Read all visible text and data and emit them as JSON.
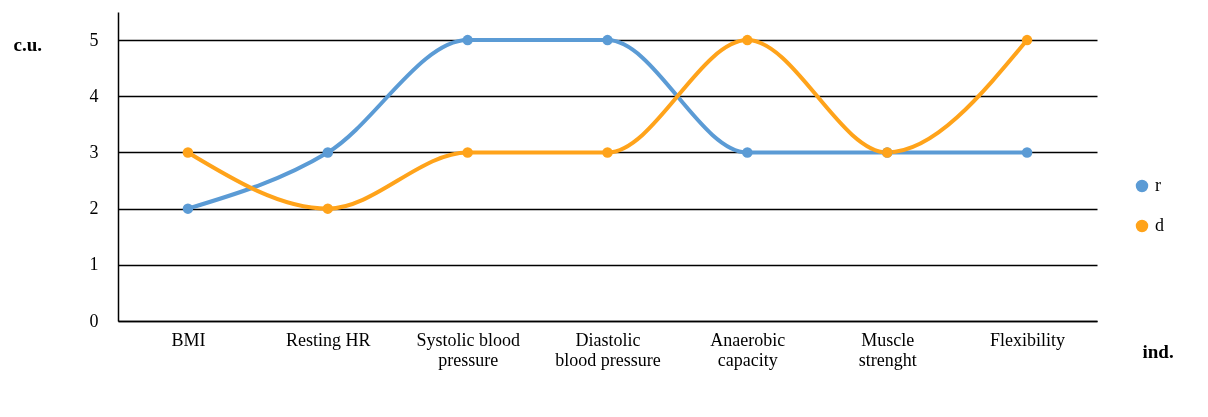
{
  "chart_data": {
    "type": "line",
    "xlabel": "ind.",
    "ylabel": "c.u.",
    "categories": [
      "BMI",
      "Resting HR",
      "Systolic blood pressure",
      "Diastolic blood pressure",
      "Anaerobic capacity",
      "Muscle strenght",
      "Flexibility"
    ],
    "series": [
      {
        "name": "r",
        "color": "#5b9bd5",
        "values": [
          2,
          3,
          5,
          5,
          3,
          3,
          3
        ]
      },
      {
        "name": "d",
        "color": "#ffa31a",
        "values": [
          3,
          2,
          3,
          3,
          5,
          3,
          5
        ]
      }
    ],
    "ylim": [
      0,
      5.5
    ],
    "yticks": [
      0,
      1,
      2,
      3,
      4,
      5
    ],
    "grid": "y",
    "legend": "right",
    "marker": "circle",
    "line_style": "solid"
  }
}
